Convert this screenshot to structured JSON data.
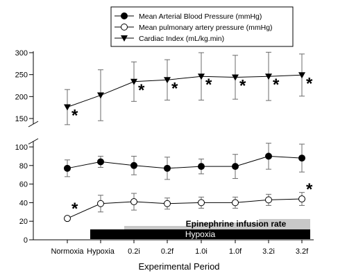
{
  "chart_data": {
    "type": "line",
    "title": "",
    "xlabel": "Experimental Period",
    "ylabel": "",
    "categories": [
      "Normoxia",
      "Hypoxia",
      "0.2i",
      "0.2f",
      "1.0i",
      "1.0f",
      "3.2i",
      "3.2f"
    ],
    "y_axis": {
      "broken": true,
      "lower_range": [
        0,
        100
      ],
      "upper_range": [
        150,
        300
      ],
      "lower_ticks": [
        0,
        20,
        40,
        60,
        80,
        100
      ],
      "upper_ticks": [
        150,
        200,
        250,
        300
      ]
    },
    "grid": false,
    "legend_position": "top-center",
    "series": [
      {
        "name": "Mean Arterial Blood Pressure (mmHg)",
        "marker": "filled-circle",
        "values": [
          77,
          84,
          80,
          77,
          79,
          79,
          90,
          88
        ],
        "errors": [
          9,
          6,
          10,
          12,
          8,
          13,
          14,
          15
        ],
        "significant": [
          false,
          false,
          false,
          false,
          false,
          false,
          false,
          false
        ]
      },
      {
        "name": "Mean pulmonary artery pressure (mmHg)",
        "marker": "open-circle",
        "values": [
          23,
          39,
          41,
          39,
          40,
          40,
          43,
          44
        ],
        "errors": [
          0,
          9,
          9,
          6,
          6,
          6,
          6,
          7
        ],
        "significant": [
          true,
          false,
          false,
          false,
          false,
          false,
          false,
          true
        ]
      },
      {
        "name": "Cardiac Index (mL/kg.min)",
        "marker": "filled-triangle-down",
        "values": [
          176,
          203,
          234,
          238,
          246,
          244,
          246,
          249
        ],
        "errors": [
          40,
          58,
          45,
          46,
          54,
          50,
          55,
          48
        ],
        "significant": [
          true,
          false,
          true,
          true,
          true,
          true,
          true,
          true
        ]
      }
    ],
    "significance_symbol": "*",
    "annotations": {
      "hypoxia_bar": {
        "label": "Hypoxia",
        "start": "Hypoxia",
        "end": "3.2f"
      },
      "epinephrine_label": "Epinephrine infusion rate",
      "epinephrine_steps": [
        {
          "start": "0.2i",
          "end": "0.2f",
          "level": 1
        },
        {
          "start": "1.0i",
          "end": "1.0f",
          "level": 2
        },
        {
          "start": "3.2i",
          "end": "3.2f",
          "level": 3
        }
      ]
    },
    "colors": {
      "hypoxia_bar": "#000000",
      "epinephrine_steps": "#c8c8c8"
    }
  }
}
